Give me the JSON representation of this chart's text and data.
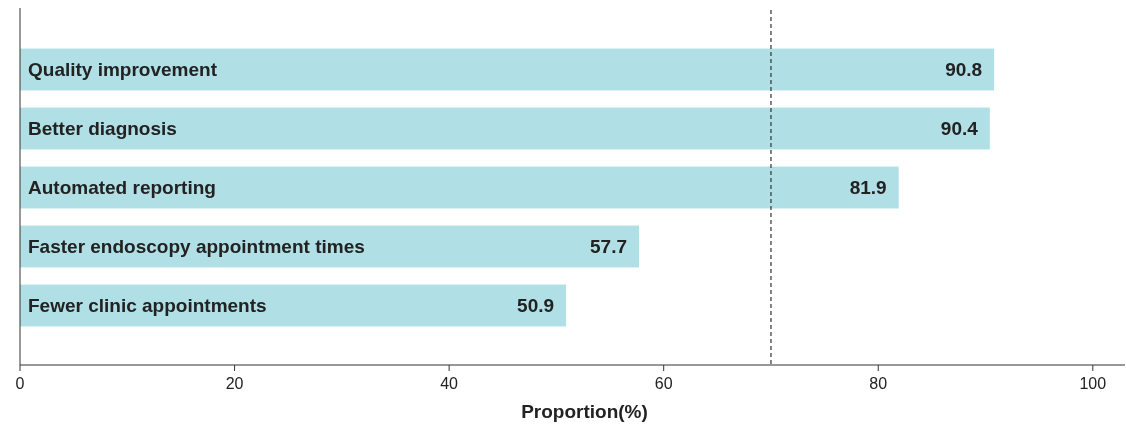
{
  "chart_data": {
    "type": "bar",
    "orientation": "horizontal",
    "xlabel": "Proportion(%)",
    "categories": [
      "Quality improvement",
      "Better diagnosis",
      "Automated reporting",
      "Faster endoscopy appointment times",
      "Fewer clinic appointments"
    ],
    "values": [
      90.8,
      90.4,
      81.9,
      57.7,
      50.9
    ],
    "color": "#b0dfe5",
    "data_labels": true,
    "xlim": [
      0,
      103
    ],
    "xticks": [
      0,
      20,
      40,
      60,
      80,
      100
    ],
    "grid": false,
    "ref_lines": [
      {
        "axis": "x",
        "value": 70,
        "line_style": "dashed",
        "color": "#333333"
      }
    ]
  }
}
